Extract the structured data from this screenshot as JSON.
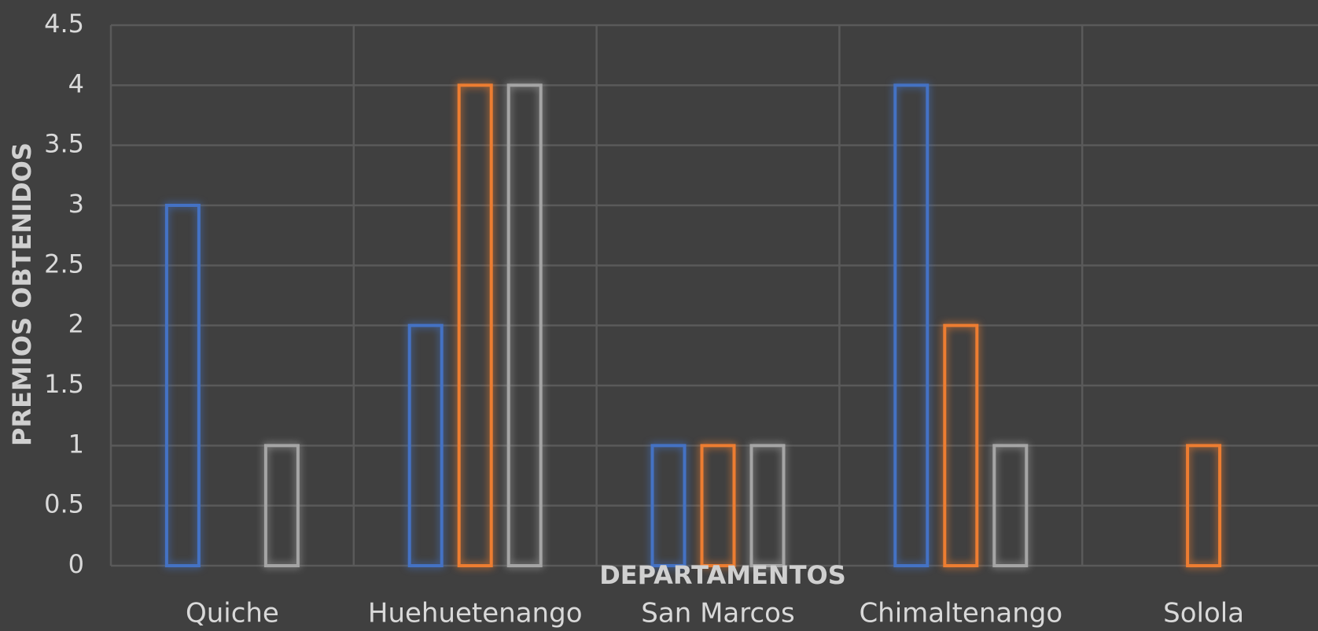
{
  "chart_data": {
    "type": "bar",
    "x_label": "DEPARTAMENTOS",
    "y_label": "PREMIOS OBTENIDOS",
    "categories": [
      "Quiche",
      "Huehuetenango",
      "San Marcos",
      "Chimaltenango",
      "Solola"
    ],
    "series": [
      {
        "color": "#4472c4",
        "values": [
          3,
          2,
          1,
          4,
          0
        ]
      },
      {
        "color": "#ed7d31",
        "values": [
          0,
          4,
          1,
          2,
          1
        ]
      },
      {
        "color": "#a5a5a5",
        "values": [
          1,
          4,
          1,
          1,
          0
        ]
      }
    ],
    "ylim": [
      0,
      4.5
    ],
    "yticks": [
      0,
      0.5,
      1,
      1.5,
      2,
      2.5,
      3,
      3.5,
      4,
      4.5
    ],
    "grid": true
  }
}
